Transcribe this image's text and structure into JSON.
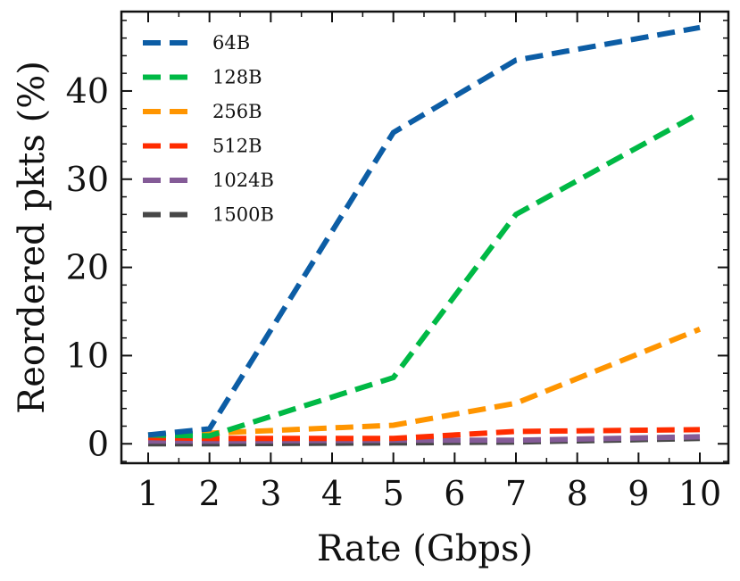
{
  "chart_data": {
    "type": "line",
    "title": "",
    "xlabel": "Rate (Gbps)",
    "ylabel": "Reordered pkts (%)",
    "categories": [
      "1",
      "2",
      "3",
      "4",
      "5",
      "6",
      "7",
      "8",
      "9",
      "10"
    ],
    "x": [
      1,
      2,
      5,
      7,
      10
    ],
    "ylim": [
      -2.2,
      49
    ],
    "yticks": [
      0,
      10,
      20,
      30,
      40
    ],
    "grid": false,
    "legend": "top-left",
    "series": [
      {
        "name": "64B",
        "color": "#0c5da5",
        "values": [
          1.0,
          1.7,
          35.3,
          43.5,
          47.2
        ]
      },
      {
        "name": "128B",
        "color": "#00b945",
        "values": [
          1.0,
          0.9,
          7.5,
          26.0,
          37.5
        ]
      },
      {
        "name": "256B",
        "color": "#ff9500",
        "values": [
          1.0,
          1.2,
          2.1,
          4.6,
          13.0
        ]
      },
      {
        "name": "512B",
        "color": "#ff2c00",
        "values": [
          0.7,
          0.6,
          0.6,
          1.4,
          1.6
        ]
      },
      {
        "name": "1024B",
        "color": "#845b97",
        "values": [
          0.3,
          0.3,
          0.4,
          0.4,
          0.8
        ]
      },
      {
        "name": "1500B",
        "color": "#474747",
        "values": [
          0.0,
          0.0,
          0.1,
          0.2,
          0.6
        ]
      }
    ]
  }
}
